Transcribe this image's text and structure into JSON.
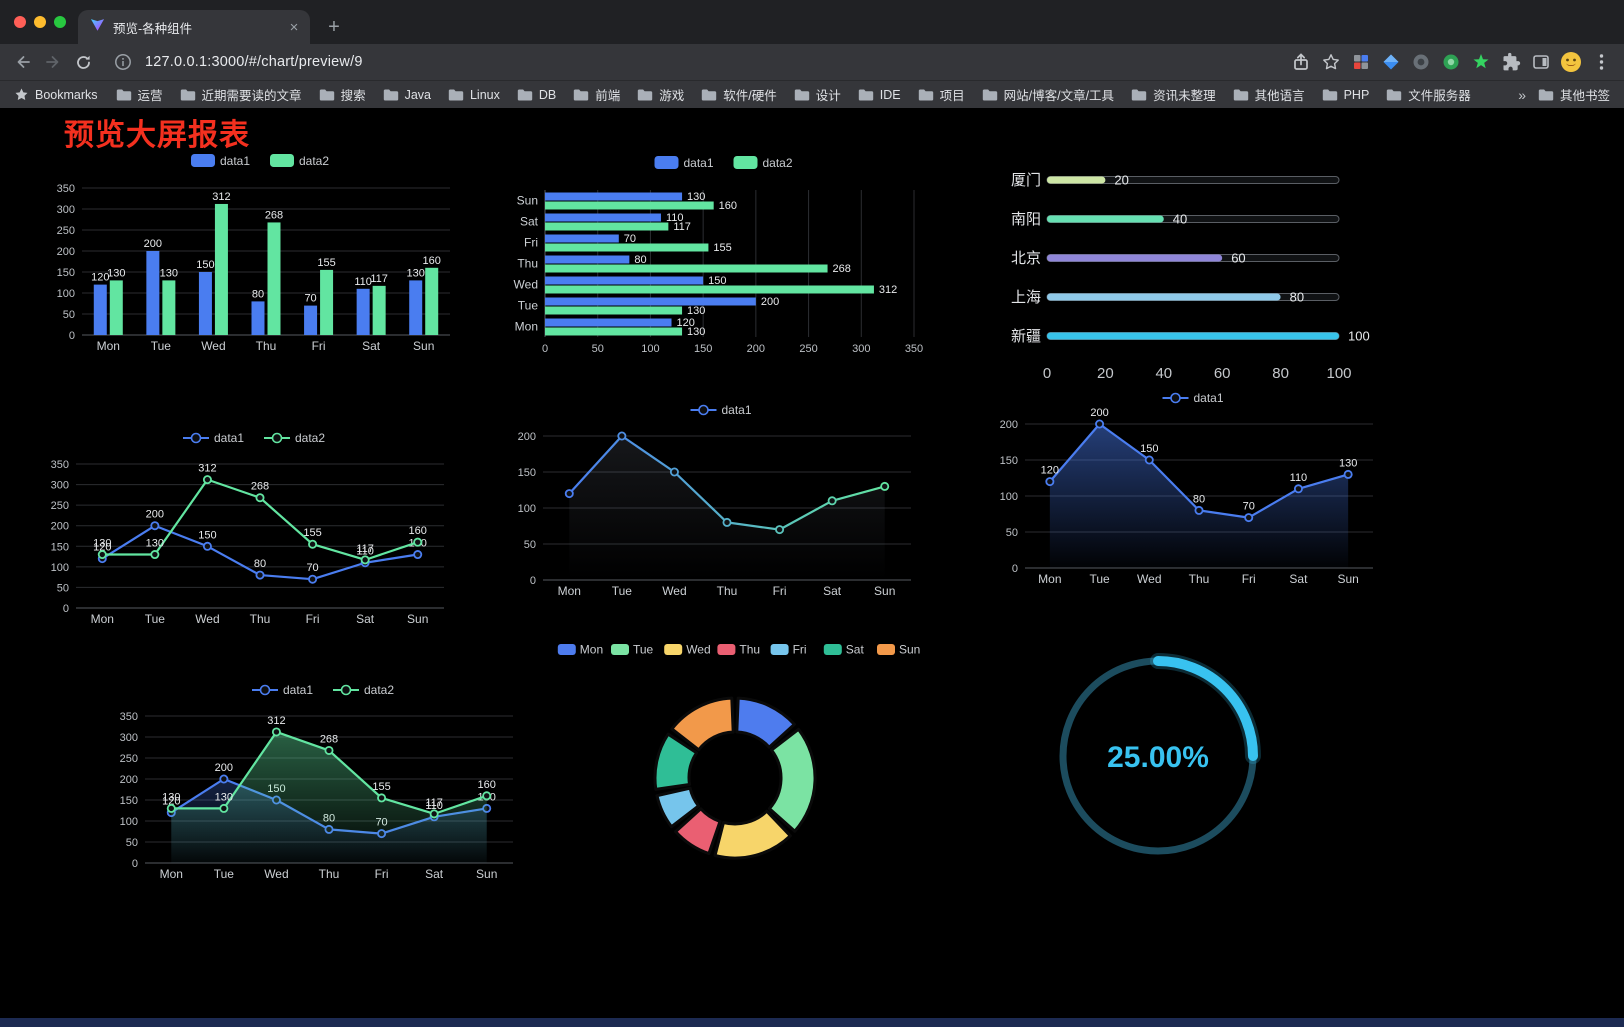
{
  "browser": {
    "traffic_lights": [
      "#FF5F57",
      "#FEBC2E",
      "#28C840"
    ],
    "tab": {
      "title": "预览-各种组件",
      "close_glyph": "×",
      "new_tab_glyph": "+"
    },
    "address": {
      "url": "127.0.0.1:3000/#/chart/preview/9"
    },
    "toolbar_icons": [
      "back",
      "forward",
      "reload",
      "site-info",
      "share",
      "bookmark-star",
      "extension-grid",
      "extension-diamond",
      "extension-circle-gray",
      "extension-circle-green",
      "extension-star-green",
      "extensions-puzzle",
      "split-view",
      "profile-avatar",
      "menu"
    ],
    "bookmarks_bar": {
      "label": "Bookmarks",
      "items": [
        "运营",
        "近期需要读的文章",
        "搜索",
        "Java",
        "Linux",
        "DB",
        "前端",
        "游戏",
        "软件/硬件",
        "设计",
        "IDE",
        "项目",
        "网站/博客/文章/工具",
        "资讯未整理",
        "其他语言",
        "PHP",
        "文件服务器"
      ],
      "overflow_glyph": "»",
      "other_bookmarks": "其他书签"
    }
  },
  "page": {
    "title": "预览大屏报表",
    "title_color": "#F4301F",
    "background": "#000000",
    "bottom_bar_color": "#1C2A52"
  },
  "chart_data": [
    {
      "id": "bar",
      "type": "bar",
      "categories": [
        "Mon",
        "Tue",
        "Wed",
        "Thu",
        "Fri",
        "Sat",
        "Sun"
      ],
      "series": [
        {
          "name": "data1",
          "color": "#4A7DF0",
          "values": [
            120,
            200,
            150,
            80,
            70,
            110,
            130
          ]
        },
        {
          "name": "data2",
          "color": "#62E5A1",
          "values": [
            130,
            130,
            312,
            268,
            155,
            117,
            160
          ]
        }
      ],
      "ylim": [
        0,
        350
      ],
      "ytick": 50,
      "legend_position": "top",
      "point_labels": true
    },
    {
      "id": "hbar",
      "type": "bar-horizontal",
      "categories": [
        "Mon",
        "Tue",
        "Wed",
        "Thu",
        "Fri",
        "Sat",
        "Sun"
      ],
      "series": [
        {
          "name": "data1",
          "color": "#4A7DF0",
          "values": [
            120,
            200,
            150,
            80,
            70,
            110,
            130
          ]
        },
        {
          "name": "data2",
          "color": "#62E5A1",
          "values": [
            130,
            130,
            312,
            268,
            155,
            117,
            160
          ]
        }
      ],
      "xlim": [
        0,
        350
      ],
      "xtick": 50,
      "legend_position": "top",
      "point_labels": true
    },
    {
      "id": "progress",
      "type": "progress-bars",
      "max": 100,
      "axis_ticks": [
        0,
        20,
        40,
        60,
        80,
        100
      ],
      "items": [
        {
          "label": "厦门",
          "value": 20,
          "color": "#CDE6A5"
        },
        {
          "label": "南阳",
          "value": 40,
          "color": "#66E0B2"
        },
        {
          "label": "北京",
          "value": 60,
          "color": "#8F86D8"
        },
        {
          "label": "上海",
          "value": 80,
          "color": "#8FC9E8"
        },
        {
          "label": "新疆",
          "value": 100,
          "color": "#38C3EA"
        }
      ]
    },
    {
      "id": "line2",
      "type": "line",
      "categories": [
        "Mon",
        "Tue",
        "Wed",
        "Thu",
        "Fri",
        "Sat",
        "Sun"
      ],
      "series": [
        {
          "name": "data1",
          "color": "#4A7DF0",
          "values": [
            120,
            200,
            150,
            80,
            70,
            110,
            130
          ]
        },
        {
          "name": "data2",
          "color": "#62E5A1",
          "values": [
            130,
            130,
            312,
            268,
            155,
            117,
            160
          ]
        }
      ],
      "ylim": [
        0,
        350
      ],
      "ytick": 50,
      "point_labels": true
    },
    {
      "id": "lineGrad",
      "type": "line",
      "categories": [
        "Mon",
        "Tue",
        "Wed",
        "Thu",
        "Fri",
        "Sat",
        "Sun"
      ],
      "series": [
        {
          "name": "data1",
          "color_gradient": [
            "#4A7DF0",
            "#62E5A1"
          ],
          "values": [
            120,
            200,
            150,
            80,
            70,
            110,
            130
          ]
        }
      ],
      "ylim": [
        0,
        200
      ],
      "ytick": 50,
      "point_labels": false
    },
    {
      "id": "areaBlue",
      "type": "area",
      "categories": [
        "Mon",
        "Tue",
        "Wed",
        "Thu",
        "Fri",
        "Sat",
        "Sun"
      ],
      "series": [
        {
          "name": "data1",
          "color": "#4A7DF0",
          "area_opacity": 0.5,
          "values": [
            120,
            200,
            150,
            80,
            70,
            110,
            130
          ]
        }
      ],
      "ylim": [
        0,
        200
      ],
      "ytick": 50,
      "point_labels": true
    },
    {
      "id": "areaGreen",
      "type": "area",
      "categories": [
        "Mon",
        "Tue",
        "Wed",
        "Thu",
        "Fri",
        "Sat",
        "Sun"
      ],
      "series": [
        {
          "name": "data1",
          "color": "#4A7DF0",
          "area_opacity": 0.28,
          "values": [
            120,
            200,
            150,
            80,
            70,
            110,
            130
          ]
        },
        {
          "name": "data2",
          "color": "#62E5A1",
          "area_opacity": 0.42,
          "values": [
            130,
            130,
            312,
            268,
            155,
            117,
            160
          ]
        }
      ],
      "ylim": [
        0,
        350
      ],
      "ytick": 50,
      "point_labels": true
    },
    {
      "id": "donut",
      "type": "pie",
      "items": [
        {
          "label": "Mon",
          "value": 120,
          "color": "#4E7CEE"
        },
        {
          "label": "Tue",
          "value": 200,
          "color": "#7BE3A3"
        },
        {
          "label": "Wed",
          "value": 150,
          "color": "#F7D56A"
        },
        {
          "label": "Thu",
          "value": 80,
          "color": "#EA5F72"
        },
        {
          "label": "Fri",
          "value": 70,
          "color": "#76C5EC"
        },
        {
          "label": "Sat",
          "value": 110,
          "color": "#2FBE96"
        },
        {
          "label": "Sun",
          "value": 130,
          "color": "#F2994A"
        }
      ]
    },
    {
      "id": "gauge",
      "type": "gauge",
      "value": 25,
      "display": "25.00%",
      "color": "#38C2F0",
      "track_color": "#1C4C5E"
    }
  ]
}
